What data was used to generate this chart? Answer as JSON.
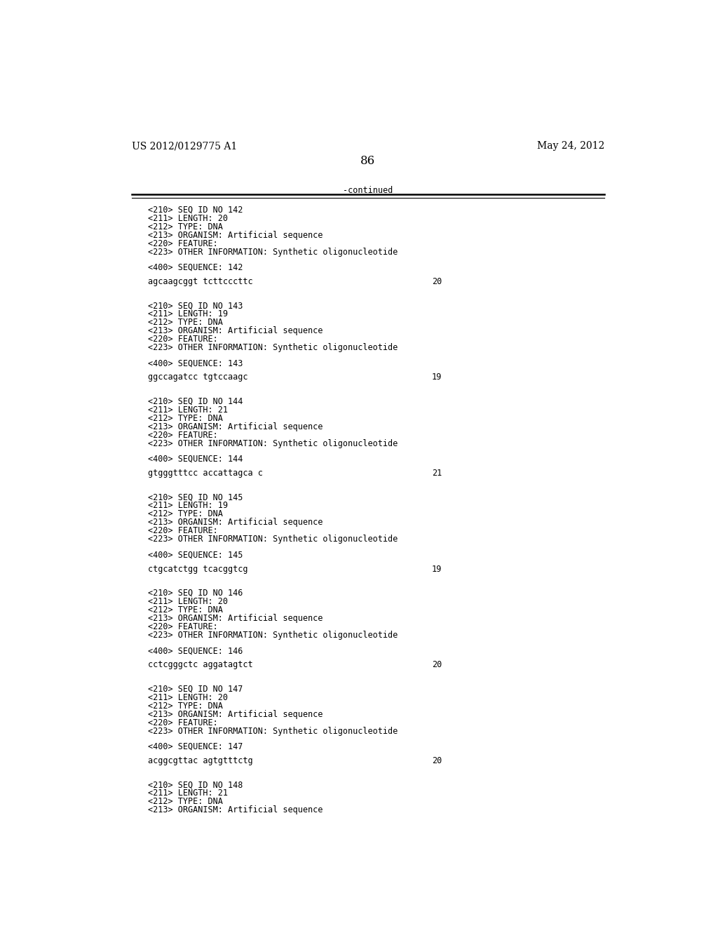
{
  "bg_color": "#ffffff",
  "header_left": "US 2012/0129775 A1",
  "header_right": "May 24, 2012",
  "page_number": "86",
  "continued_text": "-continued",
  "content": [
    {
      "type": "meta",
      "lines": [
        "<210> SEQ ID NO 142",
        "<211> LENGTH: 20",
        "<212> TYPE: DNA",
        "<213> ORGANISM: Artificial sequence",
        "<220> FEATURE:",
        "<223> OTHER INFORMATION: Synthetic oligonucleotide"
      ]
    },
    {
      "type": "seq_label",
      "text": "<400> SEQUENCE: 142"
    },
    {
      "type": "seq_data",
      "sequence": "agcaagcggt tcttcccttc",
      "length": "20"
    },
    {
      "type": "meta",
      "lines": [
        "<210> SEQ ID NO 143",
        "<211> LENGTH: 19",
        "<212> TYPE: DNA",
        "<213> ORGANISM: Artificial sequence",
        "<220> FEATURE:",
        "<223> OTHER INFORMATION: Synthetic oligonucleotide"
      ]
    },
    {
      "type": "seq_label",
      "text": "<400> SEQUENCE: 143"
    },
    {
      "type": "seq_data",
      "sequence": "ggccagatcc tgtccaagc",
      "length": "19"
    },
    {
      "type": "meta",
      "lines": [
        "<210> SEQ ID NO 144",
        "<211> LENGTH: 21",
        "<212> TYPE: DNA",
        "<213> ORGANISM: Artificial sequence",
        "<220> FEATURE:",
        "<223> OTHER INFORMATION: Synthetic oligonucleotide"
      ]
    },
    {
      "type": "seq_label",
      "text": "<400> SEQUENCE: 144"
    },
    {
      "type": "seq_data",
      "sequence": "gtgggtttcc accattagca c",
      "length": "21"
    },
    {
      "type": "meta",
      "lines": [
        "<210> SEQ ID NO 145",
        "<211> LENGTH: 19",
        "<212> TYPE: DNA",
        "<213> ORGANISM: Artificial sequence",
        "<220> FEATURE:",
        "<223> OTHER INFORMATION: Synthetic oligonucleotide"
      ]
    },
    {
      "type": "seq_label",
      "text": "<400> SEQUENCE: 145"
    },
    {
      "type": "seq_data",
      "sequence": "ctgcatctgg tcacggtcg",
      "length": "19"
    },
    {
      "type": "meta",
      "lines": [
        "<210> SEQ ID NO 146",
        "<211> LENGTH: 20",
        "<212> TYPE: DNA",
        "<213> ORGANISM: Artificial sequence",
        "<220> FEATURE:",
        "<223> OTHER INFORMATION: Synthetic oligonucleotide"
      ]
    },
    {
      "type": "seq_label",
      "text": "<400> SEQUENCE: 146"
    },
    {
      "type": "seq_data",
      "sequence": "cctcgggctc aggatagtct",
      "length": "20"
    },
    {
      "type": "meta",
      "lines": [
        "<210> SEQ ID NO 147",
        "<211> LENGTH: 20",
        "<212> TYPE: DNA",
        "<213> ORGANISM: Artificial sequence",
        "<220> FEATURE:",
        "<223> OTHER INFORMATION: Synthetic oligonucleotide"
      ]
    },
    {
      "type": "seq_label",
      "text": "<400> SEQUENCE: 147"
    },
    {
      "type": "seq_data",
      "sequence": "acggcgttac agtgtttctg",
      "length": "20"
    },
    {
      "type": "meta",
      "lines": [
        "<210> SEQ ID NO 148",
        "<211> LENGTH: 21",
        "<212> TYPE: DNA",
        "<213> ORGANISM: Artificial sequence"
      ]
    }
  ],
  "mono_font_size": 8.5,
  "header_font_size": 10,
  "page_num_font_size": 12
}
